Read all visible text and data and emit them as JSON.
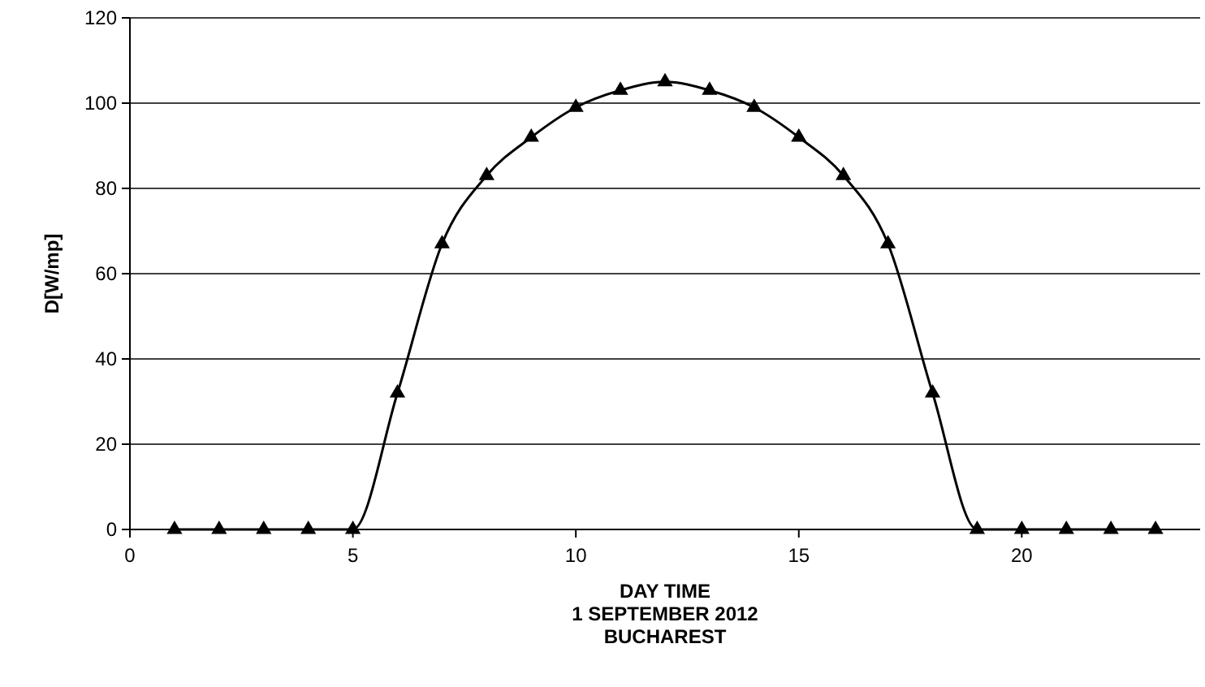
{
  "chart_data": {
    "type": "line",
    "xlabel": "DAY TIME\n1 SEPTEMBER 2012\nBUCHAREST",
    "ylabel": "D[W/mp]",
    "x": [
      1,
      2,
      3,
      4,
      5,
      6,
      7,
      8,
      9,
      10,
      11,
      12,
      13,
      14,
      15,
      16,
      17,
      18,
      19,
      20,
      21,
      22,
      23
    ],
    "series": [
      {
        "color": "#000000",
        "values": [
          0,
          0,
          0,
          0,
          0,
          32,
          67,
          83,
          92,
          99,
          103,
          105,
          103,
          99,
          92,
          83,
          67,
          32,
          0,
          0,
          0,
          0,
          0
        ]
      }
    ],
    "xlim": [
      0,
      24
    ],
    "xticks": [
      0,
      5,
      10,
      15,
      20
    ],
    "ylim": [
      0,
      120
    ],
    "yticks": [
      0,
      20,
      40,
      60,
      80,
      100,
      120
    ],
    "grid": "y",
    "marker": "triangle",
    "line_style": "solid"
  }
}
